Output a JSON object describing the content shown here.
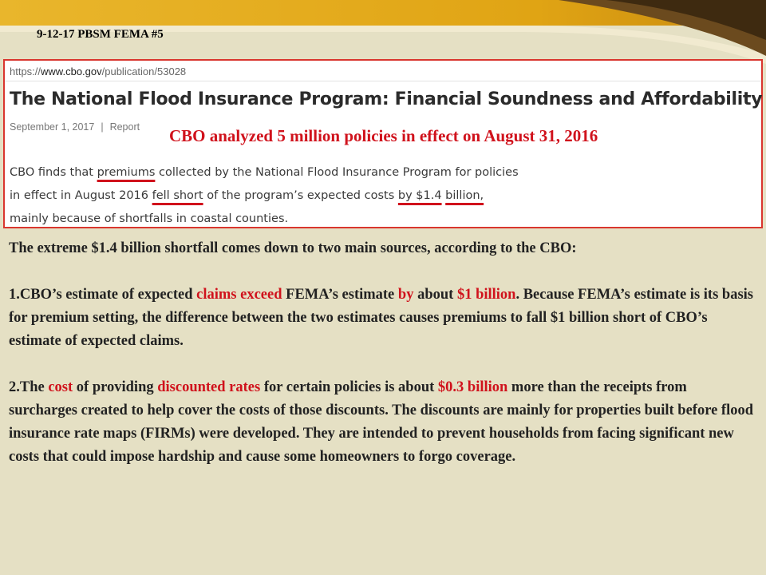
{
  "slide": {
    "label": "9-12-17 PBSM FEMA #5"
  },
  "web_excerpt": {
    "url_scheme": "https://",
    "url_domain": "www.cbo.gov",
    "url_path": "/publication/53028",
    "headline": "The National Flood Insurance Program: Financial Soundness and Affordability",
    "date": "September 1, 2017",
    "separator": "|",
    "type": "Report",
    "summary": {
      "s1": "CBO finds that ",
      "s2": "premiums",
      "s3": " collected by the National Flood Insurance Program for policies in effect in August 2016 ",
      "s4": "fell short",
      "s5": " of the program’s expected costs ",
      "s6": "by $1.4",
      "s7": " ",
      "s8": "billion,",
      "s9": " mainly because of shortfalls in coastal counties."
    }
  },
  "callout": "CBO analyzed 5 million policies in effect on August 31, 2016",
  "body": {
    "intro": "The extreme $1.4 billion shortfall comes down to two main sources, according to the CBO:",
    "p1": {
      "a": "1.CBO’s estimate of expected ",
      "b": "claims exceed",
      "c": " FEMA’s estimate ",
      "d": "by",
      "e": " about ",
      "f": "$1 billion",
      "g": ". Because FEMA’s estimate is its basis for premium setting, the difference between the two estimates causes premiums to fall $1 billion short of CBO’s estimate of expected claims."
    },
    "p2": {
      "a": "2.The ",
      "b": "cost",
      "c": " of providing ",
      "d": "discounted rates",
      "e": " for certain policies is about ",
      "f": "$0.3 billion",
      "g": " more than the receipts from surcharges created to help cover the costs of those discounts. The discounts are mainly for properties built before flood insurance rate maps (FIRMs) were developed. They are intended to prevent households from facing significant new costs that could impose hardship and cause some homeowners to forgo coverage."
    }
  },
  "colors": {
    "accent_red": "#d0121c",
    "background": "#e5e0c4",
    "gold": "#e4a81c",
    "brown": "#6b4a1e"
  }
}
